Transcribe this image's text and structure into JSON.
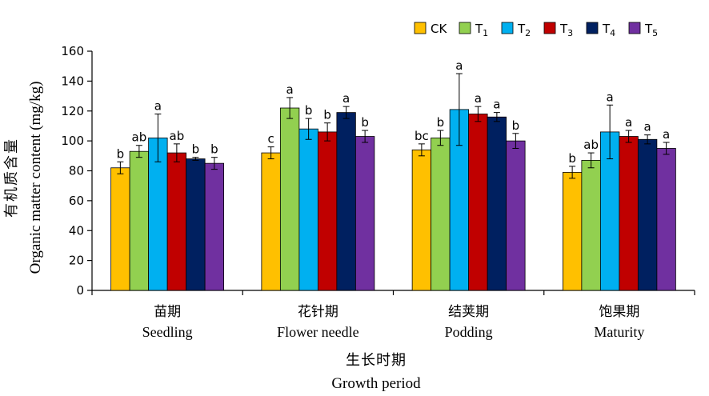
{
  "chart_data": {
    "type": "bar",
    "categories_zh": [
      "苗期",
      "花针期",
      "结荚期",
      "饱果期"
    ],
    "categories_en": [
      "Seedling",
      "Flower needle",
      "Podding",
      "Maturity"
    ],
    "ylabel_zh": "有机质含量",
    "ylabel_en": "Organic matter content (mg/kg)",
    "xlabel_zh": "生长时期",
    "xlabel_en": "Growth period",
    "ylim": [
      0,
      160
    ],
    "yticks": [
      0,
      20,
      40,
      60,
      80,
      100,
      120,
      140,
      160
    ],
    "legend_position": "top-right",
    "series": [
      {
        "name": "CK",
        "base": "CK",
        "sub": "",
        "color": "#FFC000",
        "values": [
          82,
          92,
          94,
          79
        ],
        "errors": [
          4,
          4,
          4,
          4
        ],
        "labels": [
          "b",
          "c",
          "bc",
          "b"
        ]
      },
      {
        "name": "T1",
        "base": "T",
        "sub": "1",
        "color": "#92D050",
        "values": [
          93,
          122,
          102,
          87
        ],
        "errors": [
          4,
          7,
          5,
          5
        ],
        "labels": [
          "ab",
          "a",
          "b",
          "ab"
        ]
      },
      {
        "name": "T2",
        "base": "T",
        "sub": "2",
        "color": "#00B0F0",
        "values": [
          102,
          108,
          121,
          106
        ],
        "errors": [
          16,
          7,
          24,
          18
        ],
        "labels": [
          "a",
          "b",
          "a",
          "a"
        ]
      },
      {
        "name": "T3",
        "base": "T",
        "sub": "3",
        "color": "#C00000",
        "values": [
          92,
          106,
          118,
          103
        ],
        "errors": [
          6,
          6,
          5,
          4
        ],
        "labels": [
          "ab",
          "b",
          "a",
          "a"
        ]
      },
      {
        "name": "T4",
        "base": "T",
        "sub": "4",
        "color": "#002060",
        "values": [
          88,
          119,
          116,
          101
        ],
        "errors": [
          1,
          4,
          3,
          3
        ],
        "labels": [
          "b",
          "a",
          "a",
          "a"
        ]
      },
      {
        "name": "T5",
        "base": "T",
        "sub": "5",
        "color": "#7030A0",
        "values": [
          85,
          103,
          100,
          95
        ],
        "errors": [
          4,
          4,
          5,
          4
        ],
        "labels": [
          "b",
          "b",
          "b",
          "a"
        ]
      }
    ]
  }
}
